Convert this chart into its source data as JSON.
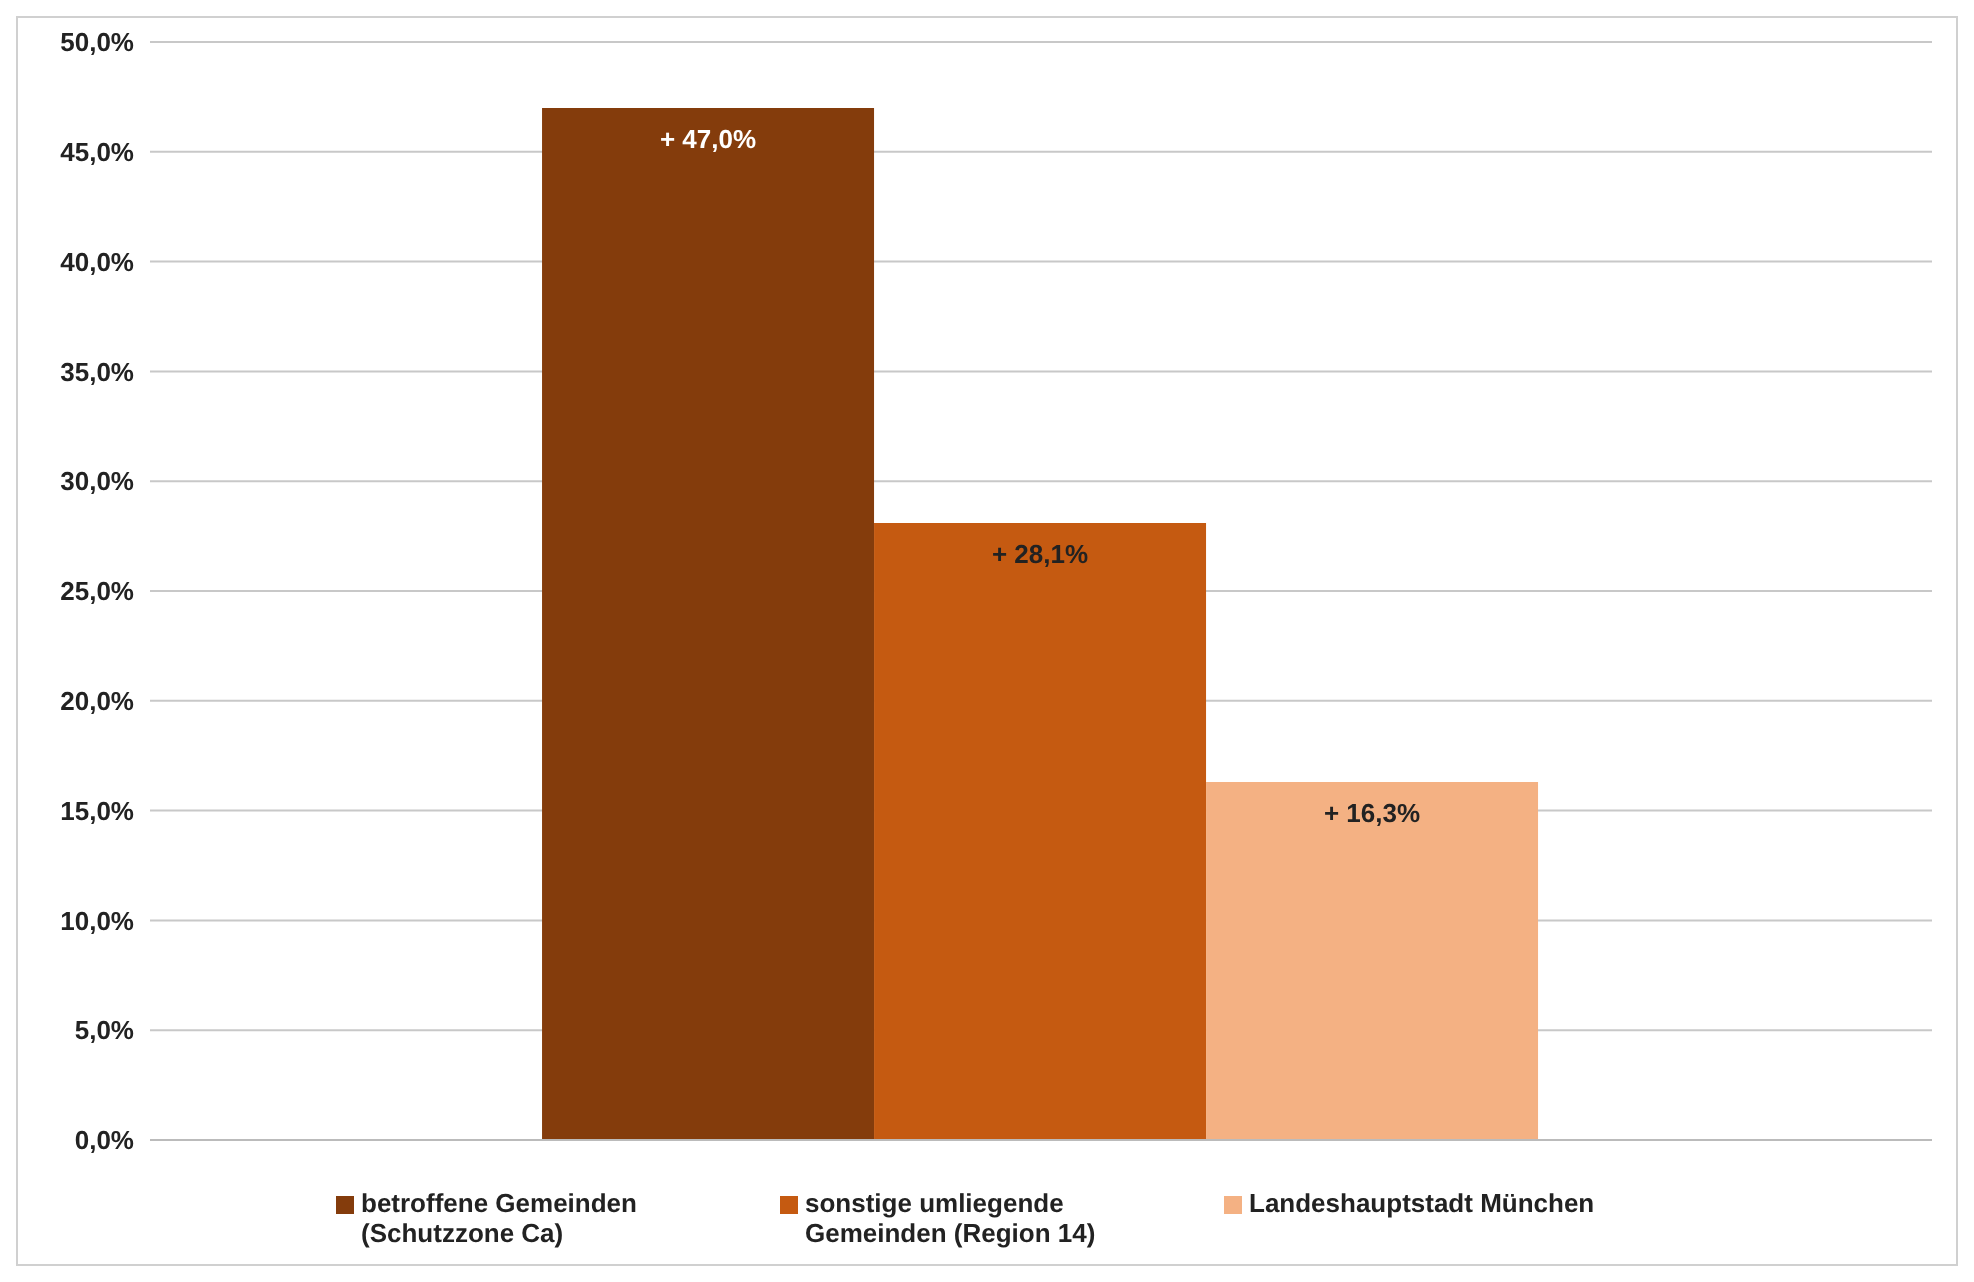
{
  "chart_data": {
    "type": "bar",
    "categories": [
      null
    ],
    "series": [
      {
        "name": "betroffene Gemeinden (Schutzzone Ca)",
        "color": "#843c0c",
        "values": [
          47.0
        ],
        "value_labels": [
          "+ 47,0%"
        ]
      },
      {
        "name": "sonstige umliegende Gemeinden (Region 14)",
        "color": "#c55a11",
        "values": [
          28.1
        ],
        "value_labels": [
          "+ 28,1%"
        ]
      },
      {
        "name": "Landeshauptstadt München",
        "color": "#f4b183",
        "values": [
          16.3
        ],
        "value_labels": [
          "+ 16,3%"
        ]
      }
    ],
    "ylim": [
      0,
      50
    ],
    "yticks": [
      {
        "value": 0,
        "label": "0,0%"
      },
      {
        "value": 5,
        "label": "5,0%"
      },
      {
        "value": 10,
        "label": "10,0%"
      },
      {
        "value": 15,
        "label": "15,0%"
      },
      {
        "value": 20,
        "label": "20,0%"
      },
      {
        "value": 25,
        "label": "25,0%"
      },
      {
        "value": 30,
        "label": "30,0%"
      },
      {
        "value": 35,
        "label": "35,0%"
      },
      {
        "value": 40,
        "label": "40,0%"
      },
      {
        "value": 45,
        "label": "45,0%"
      },
      {
        "value": 50,
        "label": "50,0%"
      }
    ],
    "grid": "y",
    "legend": "bottom"
  }
}
